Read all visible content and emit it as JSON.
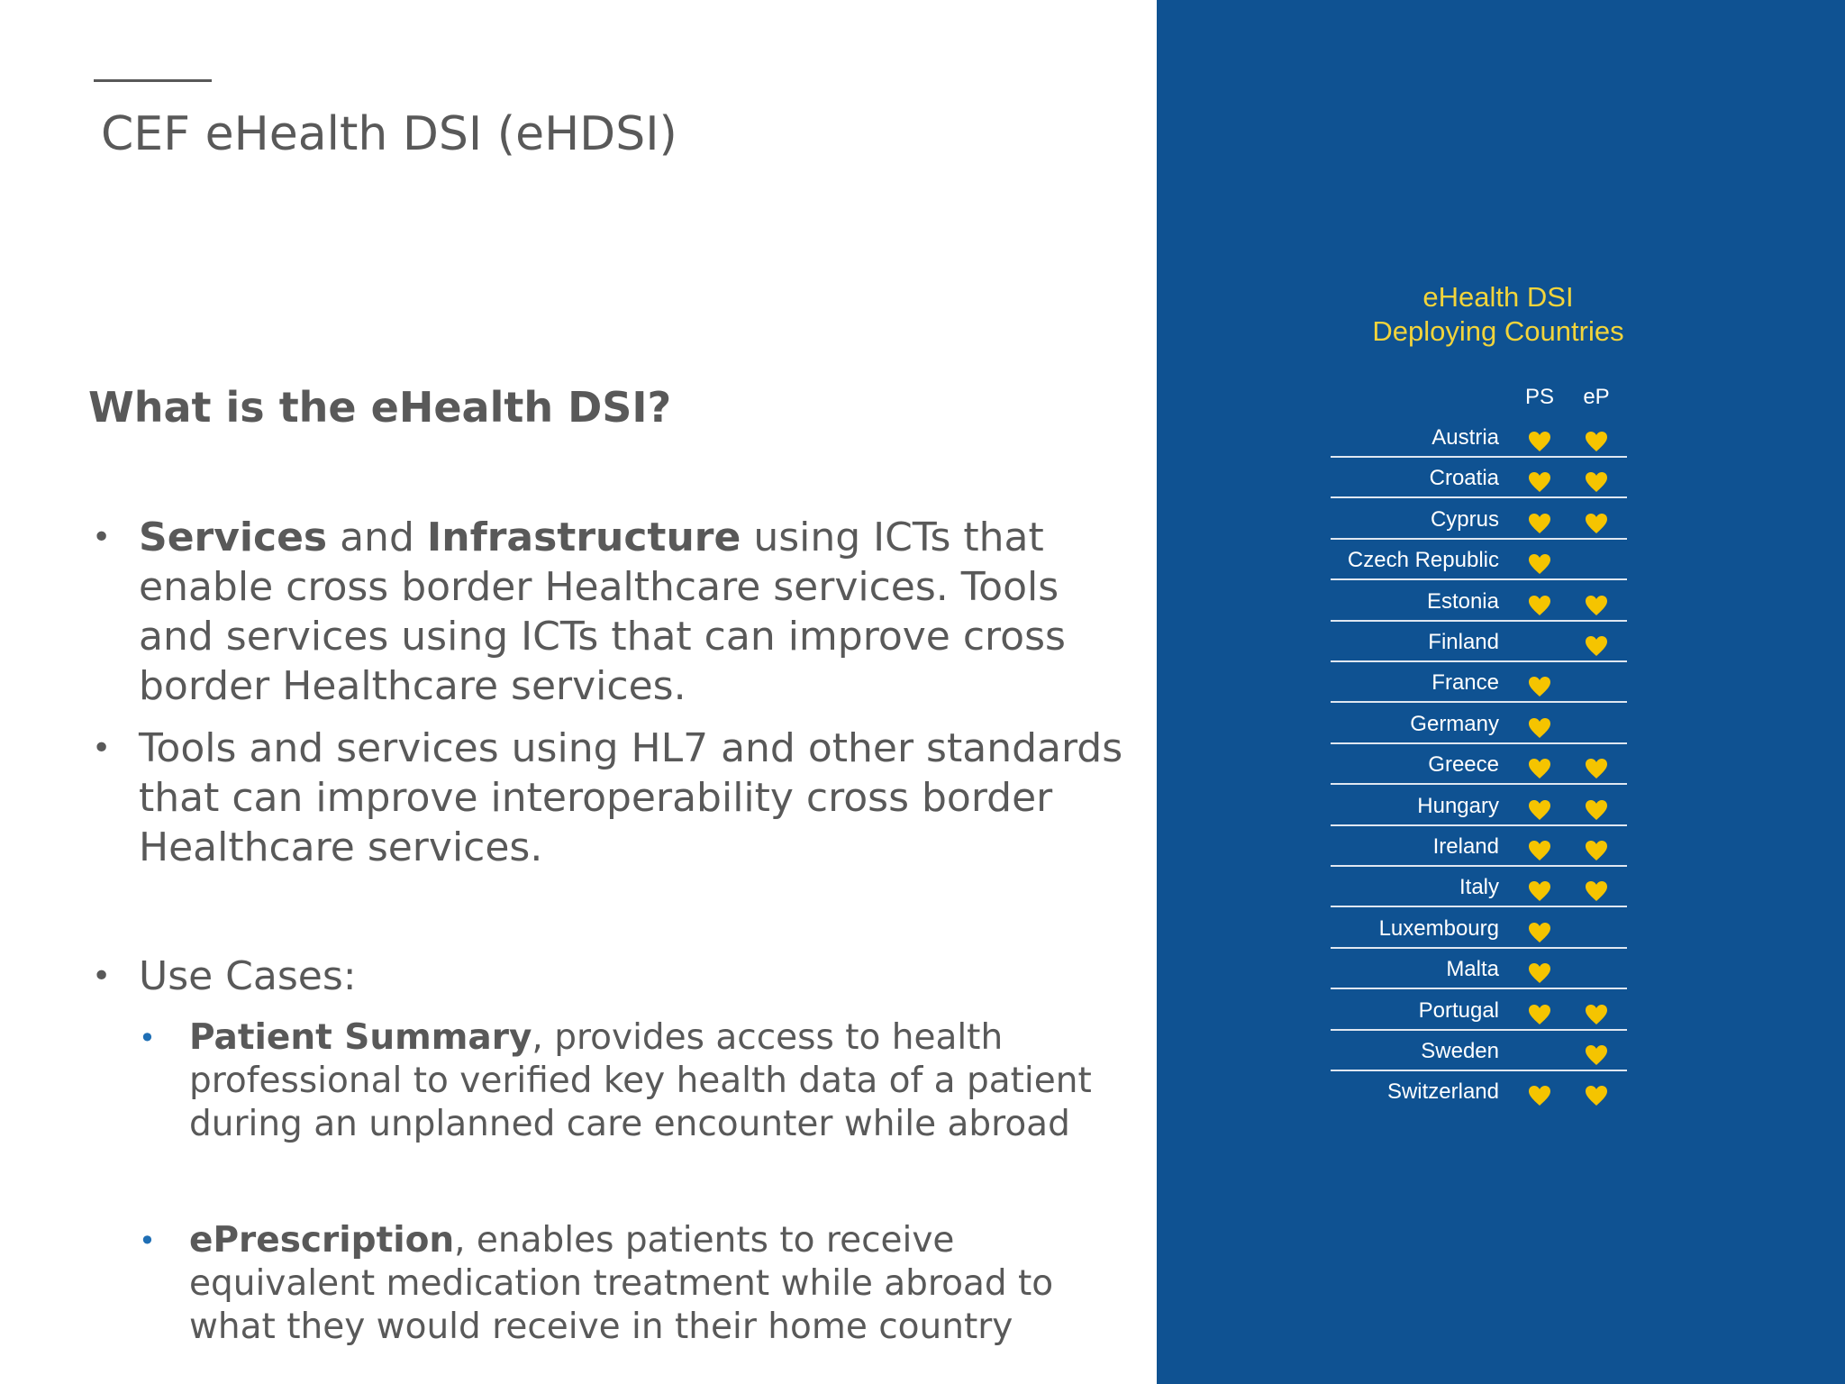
{
  "header": {
    "title": "CEF eHealth DSI (eHDSI)"
  },
  "content": {
    "heading": "What is the eHealth DSI?",
    "bullets": [
      {
        "segments": [
          {
            "text": "Services",
            "bold": true
          },
          {
            "text": " and ",
            "bold": false
          },
          {
            "text": "Infrastructure",
            "bold": true
          },
          {
            "text": " using ICTs that enable cross border Healthcare services. Tools and services using ICTs that can improve cross border Healthcare services.",
            "bold": false
          }
        ]
      },
      {
        "segments": [
          {
            "text": "Tools and services using HL7 and other standards that can improve interoperability cross border Healthcare services.",
            "bold": false
          }
        ]
      }
    ],
    "use_cases": {
      "label": "Use Cases:",
      "items": [
        {
          "segments": [
            {
              "text": "Patient Summary",
              "bold": true
            },
            {
              "text": ", provides access to health professional to verified key health data of a patient during an unplanned care encounter while abroad",
              "bold": false
            }
          ]
        },
        {
          "segments": [
            {
              "text": "ePrescription",
              "bold": true
            },
            {
              "text": ", enables patients to receive equivalent medication treatment while abroad to what they would receive in their home country",
              "bold": false
            }
          ]
        }
      ]
    }
  },
  "panel": {
    "title_lines": [
      "eHealth DSI",
      "Deploying Countries"
    ],
    "columns": [
      "PS",
      "eP"
    ],
    "countries": [
      {
        "name": "Austria",
        "ps": true,
        "ep": true
      },
      {
        "name": "Croatia",
        "ps": true,
        "ep": true
      },
      {
        "name": "Cyprus",
        "ps": true,
        "ep": true
      },
      {
        "name": "Czech Republic",
        "ps": true,
        "ep": false
      },
      {
        "name": "Estonia",
        "ps": true,
        "ep": true
      },
      {
        "name": "Finland",
        "ps": false,
        "ep": true
      },
      {
        "name": "France",
        "ps": true,
        "ep": false
      },
      {
        "name": "Germany",
        "ps": true,
        "ep": false
      },
      {
        "name": "Greece",
        "ps": true,
        "ep": true
      },
      {
        "name": "Hungary",
        "ps": true,
        "ep": true
      },
      {
        "name": "Ireland",
        "ps": true,
        "ep": true
      },
      {
        "name": "Italy",
        "ps": true,
        "ep": true
      },
      {
        "name": "Luxembourg",
        "ps": true,
        "ep": false
      },
      {
        "name": "Malta",
        "ps": true,
        "ep": false
      },
      {
        "name": "Portugal",
        "ps": true,
        "ep": true
      },
      {
        "name": "Sweden",
        "ps": false,
        "ep": true
      },
      {
        "name": "Switzerland",
        "ps": true,
        "ep": true
      }
    ]
  }
}
